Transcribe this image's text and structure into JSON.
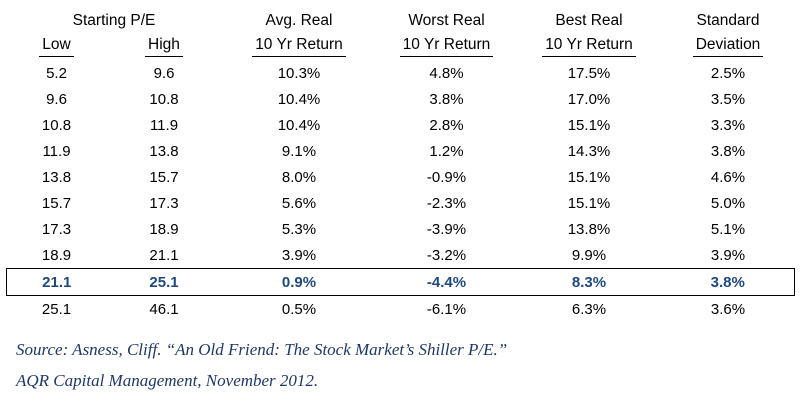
{
  "table": {
    "header_top": [
      "Starting P/E",
      "Avg. Real",
      "Worst Real",
      "Best Real",
      "Standard"
    ],
    "header_bottom": [
      "Low",
      "High",
      "10 Yr Return",
      "10 Yr Return",
      "10 Yr Return",
      "Deviation"
    ],
    "rows": [
      [
        "5.2",
        "9.6",
        "10.3%",
        "4.8%",
        "17.5%",
        "2.5%"
      ],
      [
        "9.6",
        "10.8",
        "10.4%",
        "3.8%",
        "17.0%",
        "3.5%"
      ],
      [
        "10.8",
        "11.9",
        "10.4%",
        "2.8%",
        "15.1%",
        "3.3%"
      ],
      [
        "11.9",
        "13.8",
        "9.1%",
        "1.2%",
        "14.3%",
        "3.8%"
      ],
      [
        "13.8",
        "15.7",
        "8.0%",
        "-0.9%",
        "15.1%",
        "4.6%"
      ],
      [
        "15.7",
        "17.3",
        "5.6%",
        "-2.3%",
        "15.1%",
        "5.0%"
      ],
      [
        "17.3",
        "18.9",
        "5.3%",
        "-3.9%",
        "13.8%",
        "5.1%"
      ],
      [
        "18.9",
        "21.1",
        "3.9%",
        "-3.2%",
        "9.9%",
        "3.9%"
      ],
      [
        "21.1",
        "25.1",
        "0.9%",
        "-4.4%",
        "8.3%",
        "3.8%"
      ],
      [
        "25.1",
        "46.1",
        "0.5%",
        "-6.1%",
        "6.3%",
        "3.6%"
      ]
    ],
    "highlight_row_index": 8
  },
  "source": {
    "line1": "Source: Asness, Cliff. “An Old Friend: The Stock Market’s Shiller P/E.”",
    "line2": "AQR Capital Management, November 2012."
  },
  "colors": {
    "highlight_text": "#1F497D",
    "source_text": "#1F3864",
    "body_text": "#000000",
    "background": "#FFFFFF"
  },
  "chart_data": {
    "type": "table",
    "title": "",
    "columns": [
      "Starting P/E Low",
      "Starting P/E High",
      "Avg. Real 10 Yr Return",
      "Worst Real 10 Yr Return",
      "Best Real 10 Yr Return",
      "Standard Deviation"
    ],
    "rows": [
      [
        5.2,
        9.6,
        "10.3%",
        "4.8%",
        "17.5%",
        "2.5%"
      ],
      [
        9.6,
        10.8,
        "10.4%",
        "3.8%",
        "17.0%",
        "3.5%"
      ],
      [
        10.8,
        11.9,
        "10.4%",
        "2.8%",
        "15.1%",
        "3.3%"
      ],
      [
        11.9,
        13.8,
        "9.1%",
        "1.2%",
        "14.3%",
        "3.8%"
      ],
      [
        13.8,
        15.7,
        "8.0%",
        "-0.9%",
        "15.1%",
        "4.6%"
      ],
      [
        15.7,
        17.3,
        "5.6%",
        "-2.3%",
        "15.1%",
        "5.0%"
      ],
      [
        17.3,
        18.9,
        "5.3%",
        "-3.9%",
        "13.8%",
        "5.1%"
      ],
      [
        18.9,
        21.1,
        "3.9%",
        "-3.2%",
        "9.9%",
        "3.9%"
      ],
      [
        21.1,
        25.1,
        "0.9%",
        "-4.4%",
        "8.3%",
        "3.8%"
      ],
      [
        25.1,
        46.1,
        "0.5%",
        "-6.1%",
        "6.3%",
        "3.6%"
      ]
    ],
    "highlighted_row": [
      21.1,
      25.1,
      "0.9%",
      "-4.4%",
      "8.3%",
      "3.8%"
    ],
    "annotations": [
      "Source: Asness, Cliff. “An Old Friend: The Stock Market’s Shiller P/E.”",
      "AQR Capital Management, November 2012."
    ]
  }
}
